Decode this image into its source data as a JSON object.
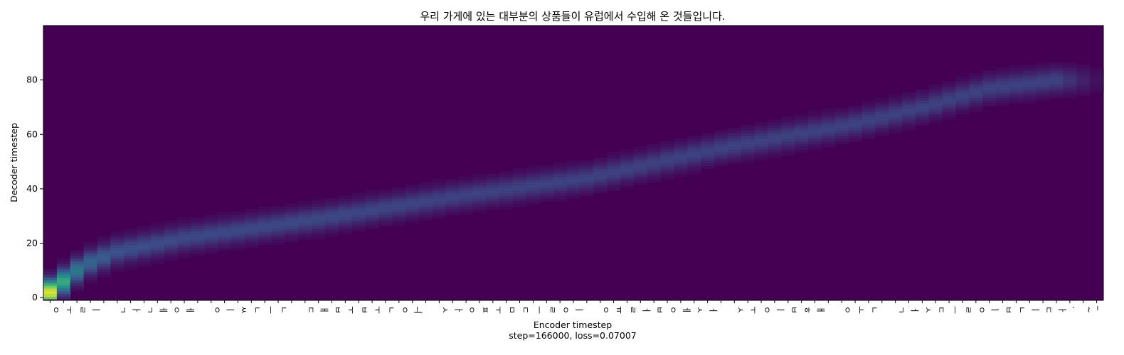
{
  "chart_data": {
    "type": "heatmap",
    "title": "우리 가게에 있는 대부분의 상품들이 유럽에서 수입해 온 것들입니다.",
    "xlabel": "Encoder timestep",
    "ylabel": "Decoder timestep",
    "footer": "step=166000, loss=0.07007",
    "colormap": "viridis",
    "background_color": "#440154",
    "ylim": [
      -1,
      100
    ],
    "yticks": [
      0,
      20,
      40,
      60,
      80
    ],
    "x_tokens": [
      "ㅇ",
      "ㅜ",
      "ㄹ",
      "ㅣ",
      " ",
      "ㄱ",
      "ㅏ",
      "ㄱ",
      "ㅔ",
      "ㅇ",
      "ㅔ",
      " ",
      "ㅇ",
      "ㅣ",
      "ㅆ",
      "ㄴ",
      "ㅡ",
      "ㄴ",
      " ",
      "ㄷ",
      "ㅐ",
      "ㅂ",
      "ㅜ",
      "ㅂ",
      "ㅜ",
      "ㄴ",
      "ㅇ",
      "ㅢ",
      " ",
      "ㅅ",
      "ㅏ",
      "ㅇ",
      "ㅍ",
      "ㅜ",
      "ㅁ",
      "ㄷ",
      "ㅡ",
      "ㄹ",
      "ㅇ",
      "ㅣ",
      " ",
      "ㅇ",
      "ㅠ",
      "ㄹ",
      "ㅓ",
      "ㅂ",
      "ㅇ",
      "ㅔ",
      "ㅅ",
      "ㅓ",
      " ",
      "ㅅ",
      "ㅜ",
      "ㅇ",
      "ㅣ",
      "ㅂ",
      "ㅎ",
      "ㅐ",
      " ",
      "ㅇ",
      "ㅗ",
      "ㄴ",
      " ",
      "ㄱ",
      "ㅓ",
      "ㅅ",
      "ㄷ",
      "ㅡ",
      "ㄹ",
      "ㅇ",
      "ㅣ",
      "ㅂ",
      "ㄴ",
      "ㅣ",
      "ㄷ",
      "ㅏ",
      ".",
      "~",
      "_"
    ],
    "alignment_path": [
      {
        "enc": 0,
        "dec": 2,
        "weight": 0.95
      },
      {
        "enc": 1,
        "dec": 6,
        "weight": 0.6
      },
      {
        "enc": 2,
        "dec": 10,
        "weight": 0.4
      },
      {
        "enc": 3,
        "dec": 13,
        "weight": 0.32
      },
      {
        "enc": 5,
        "dec": 17,
        "weight": 0.25
      },
      {
        "enc": 10,
        "dec": 22,
        "weight": 0.22
      },
      {
        "enc": 20,
        "dec": 29,
        "weight": 0.22
      },
      {
        "enc": 30,
        "dec": 37,
        "weight": 0.2
      },
      {
        "enc": 40,
        "dec": 44,
        "weight": 0.2
      },
      {
        "enc": 50,
        "dec": 55,
        "weight": 0.2
      },
      {
        "enc": 60,
        "dec": 64,
        "weight": 0.2
      },
      {
        "enc": 65,
        "dec": 70,
        "weight": 0.2
      },
      {
        "enc": 70,
        "dec": 77,
        "weight": 0.2
      },
      {
        "enc": 75,
        "dec": 80,
        "weight": 0.2
      },
      {
        "enc": 78,
        "dec": 80,
        "weight": 0.05
      }
    ]
  }
}
